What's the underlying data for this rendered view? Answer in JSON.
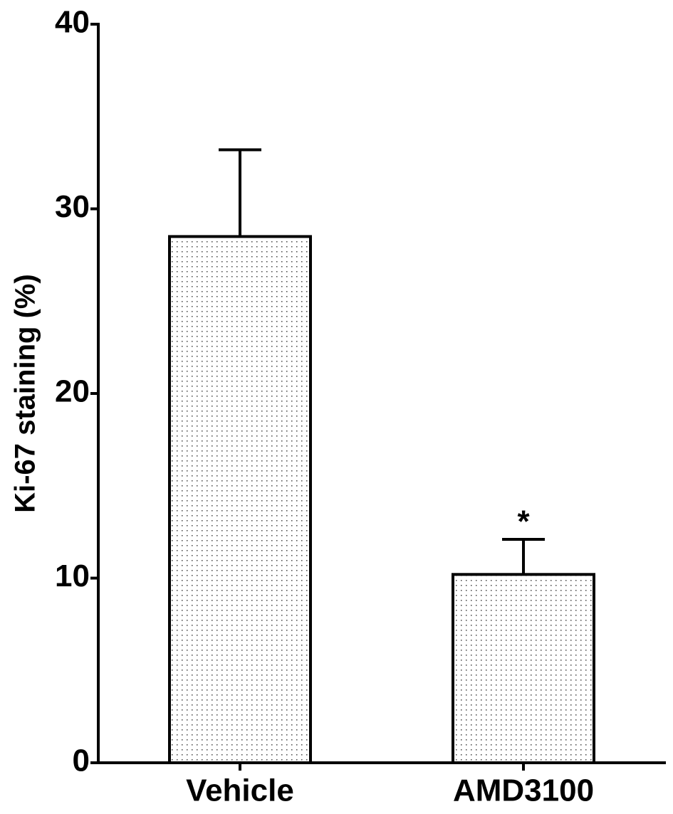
{
  "chart_data": {
    "type": "bar",
    "ylabel": "Ki-67 staining (%)",
    "categories": [
      "Vehicle",
      "AMD3100"
    ],
    "values": [
      28.5,
      10.2
    ],
    "errors": [
      4.7,
      1.9
    ],
    "annotations": [
      {
        "text": "*",
        "category": "AMD3100"
      }
    ],
    "ylim": [
      0,
      40
    ],
    "yticks": [
      0,
      10,
      20,
      30,
      40
    ],
    "grid": false
  }
}
